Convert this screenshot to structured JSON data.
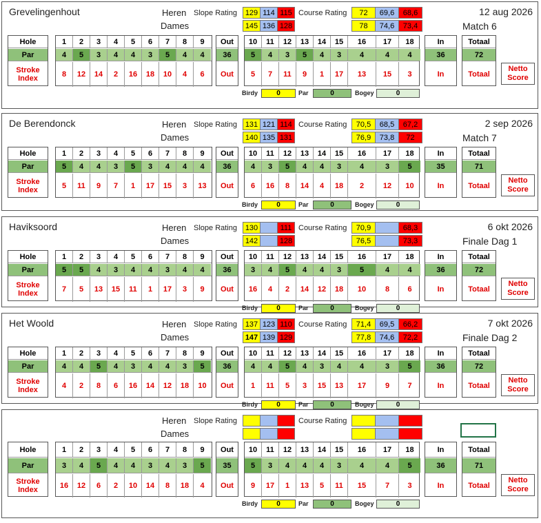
{
  "labels": {
    "heren": "Heren",
    "dames": "Dames",
    "slope": "Slope Rating",
    "course": "Course Rating",
    "hole": "Hole",
    "par": "Par",
    "stroke": "Stroke",
    "index": "Index",
    "out": "Out",
    "in": "In",
    "totaal": "Totaal",
    "netto1": "Netto",
    "netto2": "Score",
    "birdy": "Birdy",
    "parl": "Par",
    "bogey": "Bogey"
  },
  "holes_front": [
    "1",
    "2",
    "3",
    "4",
    "5",
    "6",
    "7",
    "8",
    "9"
  ],
  "holes_back": [
    "10",
    "11",
    "12",
    "13",
    "14",
    "15",
    "16",
    "17",
    "18"
  ],
  "colors": {
    "yellow": "#ffff00",
    "blue": "#a4bff0",
    "red": "#ff0000",
    "par_dark": "#6aa84f",
    "par_light": "#a9d08e"
  },
  "cards": [
    {
      "name": "Grevelingenhout",
      "date": "12 aug 2026",
      "sub": "Match 6",
      "slope_h": [
        "129",
        "114",
        "115"
      ],
      "slope_d": [
        "145",
        "136",
        "128"
      ],
      "course_h": [
        "72",
        "69,6",
        "68,6"
      ],
      "course_d": [
        "78",
        "74,6",
        "73,4"
      ],
      "par_front": [
        "4",
        "5",
        "3",
        "4",
        "4",
        "3",
        "5",
        "4",
        "4"
      ],
      "par_front_dark": [
        0,
        1,
        0,
        0,
        0,
        0,
        1,
        0,
        0
      ],
      "out_par": "36",
      "par_back": [
        "5",
        "4",
        "3",
        "5",
        "4",
        "3",
        "4",
        "4",
        "4"
      ],
      "par_back_dark": [
        1,
        0,
        0,
        1,
        0,
        0,
        0,
        0,
        0
      ],
      "in_par": "36",
      "tot_par": "72",
      "si_front": [
        "8",
        "12",
        "14",
        "2",
        "16",
        "18",
        "10",
        "4",
        "6"
      ],
      "si_back": [
        "5",
        "7",
        "11",
        "9",
        "1",
        "17",
        "13",
        "15",
        "3"
      ],
      "birdy": "0",
      "parc": "0",
      "bogey": "0",
      "dames_bold": false
    },
    {
      "name": "De Berendonck",
      "date": "2 sep 2026",
      "sub": "Match 7",
      "slope_h": [
        "131",
        "121",
        "114"
      ],
      "slope_d": [
        "140",
        "135",
        "131"
      ],
      "course_h": [
        "70,5",
        "68,5",
        "67,2"
      ],
      "course_d": [
        "76,9",
        "73,8",
        "72"
      ],
      "par_front": [
        "5",
        "4",
        "4",
        "3",
        "5",
        "3",
        "4",
        "4",
        "4"
      ],
      "par_front_dark": [
        1,
        0,
        0,
        0,
        1,
        0,
        0,
        0,
        0
      ],
      "out_par": "36",
      "par_back": [
        "4",
        "3",
        "5",
        "4",
        "4",
        "3",
        "4",
        "3",
        "5"
      ],
      "par_back_dark": [
        0,
        0,
        1,
        0,
        0,
        0,
        0,
        0,
        1
      ],
      "in_par": "35",
      "tot_par": "71",
      "si_front": [
        "5",
        "11",
        "9",
        "7",
        "1",
        "17",
        "15",
        "3",
        "13"
      ],
      "si_back": [
        "6",
        "16",
        "8",
        "14",
        "4",
        "18",
        "2",
        "12",
        "10"
      ],
      "birdy": "0",
      "parc": "0",
      "bogey": "0",
      "dames_bold": false
    },
    {
      "name": "Haviksoord",
      "date": "6 okt 2026",
      "sub": "Finale Dag 1",
      "slope_h": [
        "130",
        "",
        "111"
      ],
      "slope_d": [
        "142",
        "",
        "128"
      ],
      "course_h": [
        "70,9",
        "",
        "68,3"
      ],
      "course_d": [
        "76,5",
        "",
        "73,3"
      ],
      "par_front": [
        "5",
        "5",
        "4",
        "3",
        "4",
        "4",
        "3",
        "4",
        "4"
      ],
      "par_front_dark": [
        1,
        1,
        0,
        0,
        0,
        0,
        0,
        0,
        0
      ],
      "out_par": "36",
      "par_back": [
        "3",
        "4",
        "5",
        "4",
        "4",
        "3",
        "5",
        "4",
        "4"
      ],
      "par_back_dark": [
        0,
        0,
        1,
        0,
        0,
        0,
        1,
        0,
        0
      ],
      "in_par": "36",
      "tot_par": "72",
      "si_front": [
        "7",
        "5",
        "13",
        "15",
        "11",
        "1",
        "17",
        "3",
        "9"
      ],
      "si_back": [
        "16",
        "4",
        "2",
        "14",
        "12",
        "18",
        "10",
        "8",
        "6"
      ],
      "birdy": "0",
      "parc": "0",
      "bogey": "0",
      "dames_bold": false
    },
    {
      "name": "Het Woold",
      "date": "7 okt 2026",
      "sub": "Finale Dag 2",
      "slope_h": [
        "137",
        "123",
        "110"
      ],
      "slope_d": [
        "147",
        "139",
        "129"
      ],
      "course_h": [
        "71,4",
        "69,5",
        "66,2"
      ],
      "course_d": [
        "77,8",
        "74,6",
        "72,2"
      ],
      "par_front": [
        "4",
        "4",
        "5",
        "4",
        "3",
        "4",
        "4",
        "3",
        "5"
      ],
      "par_front_dark": [
        0,
        0,
        1,
        0,
        0,
        0,
        0,
        0,
        1
      ],
      "out_par": "36",
      "par_back": [
        "4",
        "4",
        "5",
        "4",
        "3",
        "4",
        "4",
        "3",
        "5"
      ],
      "par_back_dark": [
        0,
        0,
        1,
        0,
        0,
        0,
        0,
        0,
        1
      ],
      "in_par": "36",
      "tot_par": "72",
      "si_front": [
        "4",
        "2",
        "8",
        "6",
        "16",
        "14",
        "12",
        "18",
        "10"
      ],
      "si_back": [
        "1",
        "11",
        "5",
        "3",
        "15",
        "13",
        "17",
        "9",
        "7"
      ],
      "birdy": "0",
      "parc": "0",
      "bogey": "0",
      "dames_bold": true
    },
    {
      "name": "",
      "date": "",
      "sub": "",
      "slope_h": [
        "",
        "",
        ""
      ],
      "slope_d": [
        "",
        "",
        ""
      ],
      "course_h": [
        "",
        "",
        ""
      ],
      "course_d": [
        "",
        "",
        ""
      ],
      "par_front": [
        "3",
        "4",
        "5",
        "4",
        "4",
        "3",
        "4",
        "3",
        "5"
      ],
      "par_front_dark": [
        0,
        0,
        1,
        0,
        0,
        0,
        0,
        0,
        1
      ],
      "out_par": "35",
      "par_back": [
        "5",
        "3",
        "4",
        "4",
        "4",
        "3",
        "4",
        "4",
        "5"
      ],
      "par_back_dark": [
        1,
        0,
        0,
        0,
        0,
        0,
        0,
        0,
        1
      ],
      "in_par": "36",
      "tot_par": "71",
      "si_front": [
        "16",
        "12",
        "6",
        "2",
        "10",
        "14",
        "8",
        "18",
        "4"
      ],
      "si_back": [
        "9",
        "17",
        "1",
        "13",
        "5",
        "11",
        "15",
        "7",
        "3"
      ],
      "birdy": "0",
      "parc": "0",
      "bogey": "0",
      "dames_bold": false
    }
  ]
}
